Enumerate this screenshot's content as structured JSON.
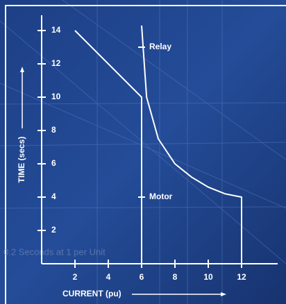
{
  "chart_data": {
    "type": "line",
    "x_label": "CURRENT (pu)",
    "y_label": "TIME (secs)",
    "background_text": "0.2 Seconds at 1 per Unit",
    "xlim": [
      0,
      14
    ],
    "ylim": [
      0,
      14.5
    ],
    "xticks": [
      2,
      4,
      6,
      8,
      10,
      12
    ],
    "yticks": [
      2,
      4,
      6,
      8,
      10,
      12,
      14
    ],
    "series": [
      {
        "name": "Motor",
        "color": "#ffffff",
        "x": [
          2,
          6,
          6
        ],
        "values": [
          14,
          10,
          0
        ]
      },
      {
        "name": "Relay",
        "color": "#ffffff",
        "x": [
          6,
          6.3,
          7,
          8,
          9,
          10,
          11,
          12,
          12
        ],
        "values": [
          14.3,
          10,
          7.5,
          6,
          5.2,
          4.6,
          4.2,
          4,
          0
        ]
      }
    ],
    "annotations": [
      {
        "text": "Relay",
        "x": 6,
        "y": 13
      },
      {
        "text": "Motor",
        "x": 6,
        "y": 4
      }
    ]
  }
}
